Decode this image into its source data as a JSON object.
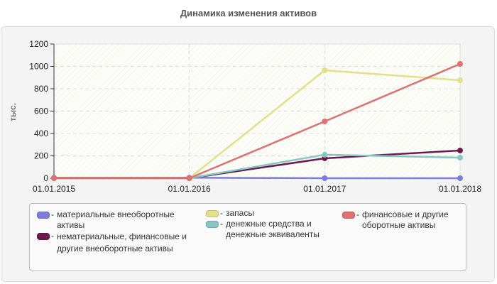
{
  "title": "Динамика изменения активов",
  "chart_data": {
    "type": "line",
    "title": "Динамика изменения активов",
    "xlabel": "",
    "ylabel": "тыс.",
    "categories": [
      "01.01.2015",
      "01.01.2016",
      "01.01.2017",
      "01.01.2018"
    ],
    "ylim": [
      0,
      1200
    ],
    "yticks": [
      0,
      200,
      400,
      600,
      800,
      1000,
      1200
    ],
    "grid": true,
    "legend_position": "bottom",
    "series": [
      {
        "name": "материальные внеоборотные активы",
        "color": "#7b7be0",
        "values": [
          5,
          5,
          0,
          0
        ]
      },
      {
        "name": "нематериальные, финансовые и другие внеоборотные активы",
        "color": "#6b1a4e",
        "values": [
          0,
          0,
          178,
          248
        ]
      },
      {
        "name": "запасы",
        "color": "#e3e08a",
        "values": [
          0,
          0,
          965,
          876
        ]
      },
      {
        "name": "денежные средства и денежные эквиваленты",
        "color": "#88c6c4",
        "values": [
          0,
          0,
          210,
          184
        ]
      },
      {
        "name": "финансовые и другие оборотные активы",
        "color": "#e07070",
        "values": [
          0,
          0,
          508,
          1022
        ]
      }
    ]
  },
  "legend": [
    {
      "label": "материальные внеоборотные активы",
      "color": "#7b7be0"
    },
    {
      "label": "нематериальные, финансовые и другие внеоборотные активы",
      "color": "#6b1a4e"
    },
    {
      "label": "запасы",
      "color": "#e3e08a"
    },
    {
      "label": "денежные средства и денежные эквиваленты",
      "color": "#88c6c4"
    },
    {
      "label": "финансовые и другие оборотные активы",
      "color": "#e07070"
    }
  ],
  "legend_dash": "-"
}
